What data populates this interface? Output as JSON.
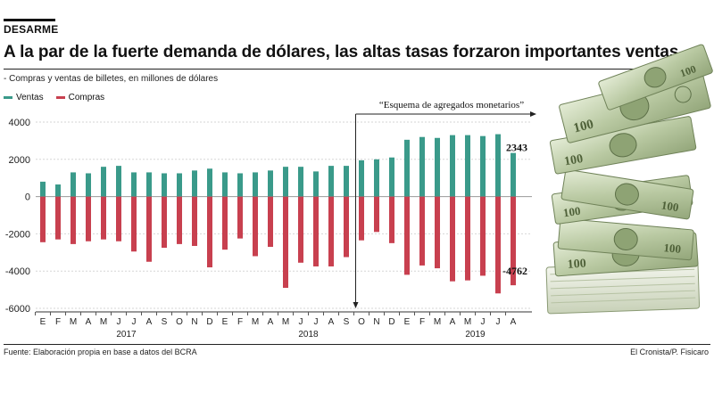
{
  "header": {
    "kicker": "DESARME",
    "headline": "A la par de la fuerte demanda de dólares, las altas tasas forzaron importantes ventas",
    "subtitle": "- Compras y ventas de billetes, en millones de dólares"
  },
  "footer": {
    "source": "Fuente: Elaboración propia en base a datos del BCRA",
    "credit": "El Cronista/P. Fisicaro"
  },
  "illustration": {
    "icon": "dollar-bills-stack-icon"
  },
  "chart_data": {
    "type": "bar",
    "colors": {
      "ventas": "#3a9a8a",
      "compras": "#c8404f"
    },
    "legend_placement": "top-left",
    "grid": true,
    "ylim": [
      -6000,
      4000
    ],
    "yticks": [
      "4000",
      "2000",
      "0",
      "-2000",
      "-4000",
      "-6000"
    ],
    "ytick_values": [
      4000,
      2000,
      0,
      -2000,
      -4000,
      -6000
    ],
    "categories": [
      "E",
      "F",
      "M",
      "A",
      "M",
      "J",
      "J",
      "A",
      "S",
      "O",
      "N",
      "D",
      "E",
      "F",
      "M",
      "A",
      "M",
      "J",
      "J",
      "A",
      "S",
      "O",
      "N",
      "D",
      "E",
      "F",
      "M",
      "A",
      "M",
      "J",
      "J",
      "A"
    ],
    "years": [
      {
        "label": "2017",
        "center_index": 5.5
      },
      {
        "label": "2018",
        "center_index": 17.5
      },
      {
        "label": "2019",
        "center_index": 28.5
      }
    ],
    "series": [
      {
        "name": "Ventas",
        "values": [
          800,
          650,
          1300,
          1250,
          1600,
          1650,
          1300,
          1300,
          1250,
          1250,
          1400,
          1500,
          1300,
          1250,
          1300,
          1400,
          1600,
          1600,
          1350,
          1650,
          1650,
          1950,
          2000,
          2100,
          3050,
          3200,
          3150,
          3300,
          3300,
          3250,
          3350,
          2343
        ]
      },
      {
        "name": "Compras",
        "values": [
          -2450,
          -2300,
          -2550,
          -2400,
          -2300,
          -2400,
          -2950,
          -3500,
          -2750,
          -2550,
          -2650,
          -3800,
          -2850,
          -2250,
          -3200,
          -2700,
          -4900,
          -3550,
          -3750,
          -3750,
          -3250,
          -2350,
          -1900,
          -2500,
          -4200,
          -3700,
          -3850,
          -4550,
          -4500,
          -4250,
          -5200,
          -4762
        ]
      }
    ],
    "annotations": {
      "esquema_label": "“Esquema de agregados monetarios”",
      "esquema_start_index": 21,
      "last_ventas_label": "2343",
      "last_compras_label": "-4762"
    }
  }
}
